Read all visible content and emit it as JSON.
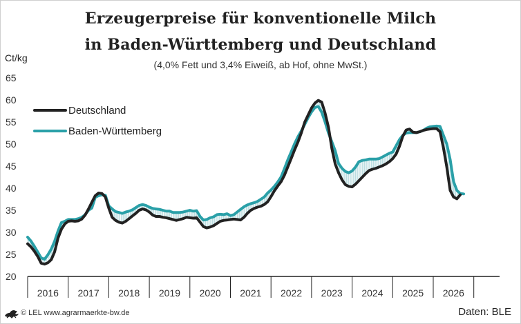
{
  "chart_data": {
    "type": "line",
    "title": "Erzeugerpreise für konventionelle Milch",
    "title_line2": "in Baden-Württemberg und Deutschland",
    "subtitle": "(4,0% Fett und 3,4% Eiweiß, ab Hof, ohne MwSt.)",
    "ylabel": "Ct/kg",
    "xlabel": "",
    "ylim": [
      20,
      65
    ],
    "yticks": [
      "20",
      "25",
      "30",
      "35",
      "40",
      "45",
      "50",
      "55",
      "60",
      "65"
    ],
    "xticks": [
      "2016",
      "2017",
      "2018",
      "2019",
      "2020",
      "2021",
      "2022",
      "2023",
      "2024",
      "2025",
      "2026"
    ],
    "x_start": "2016-01",
    "legend_position": "top-left",
    "grid": false,
    "series": [
      {
        "name": "Deutschland",
        "color": "#222222",
        "values": [
          27.4,
          26.7,
          25.7,
          24.5,
          23.0,
          22.8,
          23.1,
          23.8,
          25.6,
          28.7,
          30.7,
          31.9,
          32.5,
          32.6,
          32.5,
          32.6,
          33.0,
          33.9,
          35.3,
          36.8,
          38.3,
          38.9,
          38.8,
          38.0,
          35.5,
          33.4,
          32.7,
          32.3,
          32.1,
          32.5,
          33.1,
          33.7,
          34.3,
          35.0,
          35.3,
          35.1,
          34.6,
          33.9,
          33.6,
          33.6,
          33.4,
          33.3,
          33.1,
          32.9,
          32.7,
          32.9,
          33.1,
          33.4,
          33.3,
          33.2,
          33.3,
          32.3,
          31.3,
          31.0,
          31.2,
          31.5,
          32.0,
          32.5,
          32.7,
          32.8,
          32.9,
          33.0,
          32.9,
          32.8,
          33.4,
          34.3,
          35.0,
          35.4,
          35.7,
          35.9,
          36.3,
          36.9,
          38.1,
          39.4,
          40.5,
          41.5,
          43.0,
          44.9,
          46.8,
          48.7,
          50.5,
          52.6,
          55.0,
          56.6,
          58.2,
          59.3,
          59.9,
          59.5,
          57.0,
          53.8,
          49.0,
          45.5,
          43.5,
          41.9,
          40.8,
          40.4,
          40.3,
          40.9,
          41.7,
          42.5,
          43.3,
          44.0,
          44.3,
          44.5,
          44.8,
          45.1,
          45.5,
          46.0,
          46.7,
          47.7,
          49.5,
          51.8,
          53.2,
          53.4,
          52.7,
          52.6,
          52.8,
          53.1,
          53.3,
          53.4,
          53.5,
          53.5,
          52.8,
          49.2,
          44.8,
          39.5,
          38.0,
          37.6,
          38.5
        ]
      },
      {
        "name": "Baden-Württemberg",
        "color": "#2aa0a8",
        "values": [
          28.9,
          28.0,
          26.8,
          25.5,
          24.2,
          23.9,
          24.9,
          26.2,
          28.0,
          30.3,
          32.2,
          32.5,
          32.9,
          32.9,
          32.9,
          33.1,
          33.4,
          34.0,
          35.0,
          35.5,
          37.9,
          38.3,
          38.5,
          38.4,
          36.0,
          35.3,
          34.7,
          34.5,
          34.3,
          34.6,
          34.8,
          35.1,
          35.6,
          36.1,
          36.3,
          36.1,
          35.7,
          35.4,
          35.3,
          35.2,
          35.0,
          34.8,
          34.8,
          34.5,
          34.5,
          34.5,
          34.6,
          34.8,
          35.0,
          34.8,
          34.9,
          33.6,
          32.8,
          32.9,
          33.3,
          33.5,
          34.0,
          34.1,
          34.0,
          34.2,
          33.8,
          34.0,
          34.6,
          35.2,
          35.8,
          36.2,
          36.5,
          36.7,
          37.0,
          37.5,
          38.0,
          38.9,
          39.6,
          40.4,
          41.4,
          42.6,
          44.5,
          46.5,
          48.3,
          50.1,
          51.7,
          53.0,
          54.5,
          56.0,
          57.3,
          58.3,
          58.5,
          57.2,
          55.0,
          52.5,
          50.5,
          48.5,
          45.6,
          44.5,
          43.8,
          43.5,
          43.9,
          44.8,
          46.0,
          46.3,
          46.4,
          46.6,
          46.6,
          46.6,
          46.7,
          47.1,
          47.5,
          47.9,
          48.2,
          49.6,
          51.0,
          52.0,
          52.5,
          52.6,
          52.6,
          52.6,
          52.8,
          53.1,
          53.6,
          53.9,
          54.0,
          54.1,
          54.0,
          52.0,
          50.0,
          46.5,
          41.5,
          39.5,
          38.8,
          38.7
        ]
      }
    ]
  },
  "footer": {
    "copyright": "© LEL www.agrarmaerkte-bw.de",
    "source": "Daten: BLE"
  },
  "icons": {
    "logo": "baden-wuerttemberg-lion-logo"
  }
}
